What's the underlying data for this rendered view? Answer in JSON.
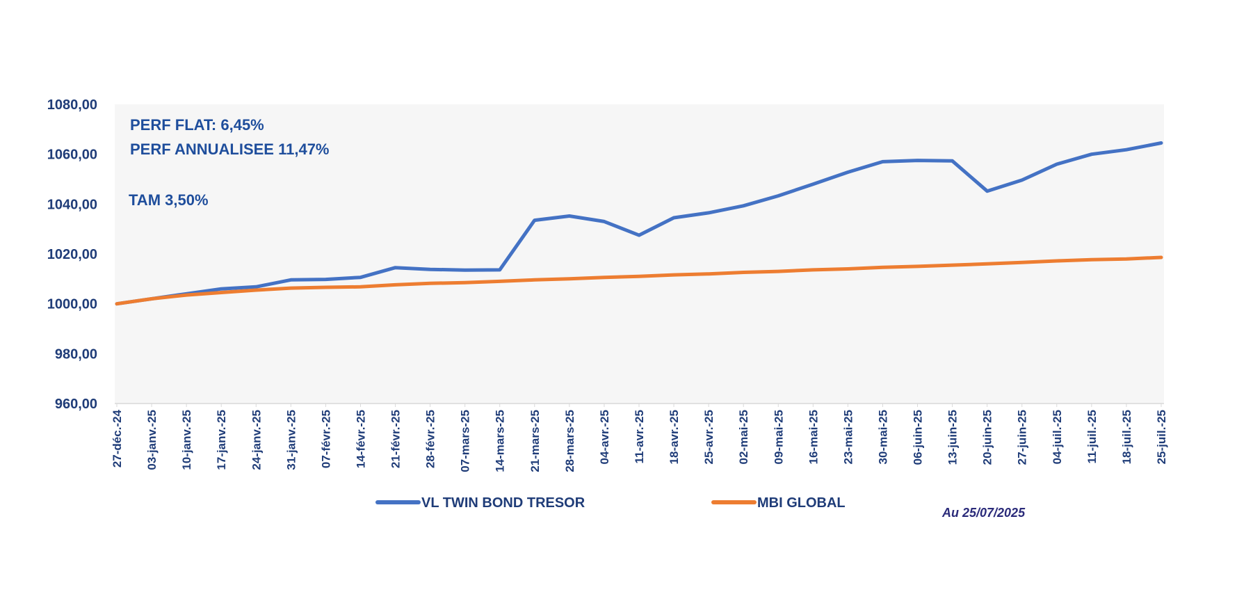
{
  "chart_data": {
    "type": "line",
    "title": "",
    "xlabel": "",
    "ylabel": "",
    "ylim": [
      960,
      1080
    ],
    "yticks": [
      "960,00",
      "980,00",
      "1000,00",
      "1020,00",
      "1040,00",
      "1060,00",
      "1080,00"
    ],
    "ytick_values": [
      960,
      980,
      1000,
      1020,
      1040,
      1060,
      1080
    ],
    "grid": false,
    "legend_position": "bottom",
    "categories": [
      "27-déc.-24",
      "03-janv.-25",
      "10-janv.-25",
      "17-janv.-25",
      "24-janv.-25",
      "31-janv.-25",
      "07-févr.-25",
      "14-févr.-25",
      "21-févr.-25",
      "28-févr.-25",
      "07-mars-25",
      "14-mars-25",
      "21-mars-25",
      "28-mars-25",
      "04-avr.-25",
      "11-avr.-25",
      "18-avr.-25",
      "25-avr.-25",
      "02-mai-25",
      "09-mai-25",
      "16-mai-25",
      "23-mai-25",
      "30-mai-25",
      "06-juin-25",
      "13-juin-25",
      "20-juin-25",
      "27-juin-25",
      "04-juil.-25",
      "11-juil.-25",
      "18-juil.-25",
      "25-juil.-25"
    ],
    "series": [
      {
        "name": "VL TWIN BOND TRESOR",
        "color": "#4472c4",
        "values": [
          1000.0,
          1002.0,
          1004.0,
          1006.0,
          1006.8,
          1009.6,
          1009.8,
          1010.6,
          1014.5,
          1013.8,
          1013.5,
          1013.6,
          1033.5,
          1035.2,
          1033.0,
          1027.5,
          1034.5,
          1036.5,
          1039.3,
          1043.3,
          1048.0,
          1052.8,
          1057.0,
          1057.5,
          1057.3,
          1045.2,
          1049.6,
          1056.0,
          1060.0,
          1061.8,
          1064.5
        ]
      },
      {
        "name": "MBI GLOBAL",
        "color": "#ed7d31",
        "values": [
          1000.0,
          1002.0,
          1003.5,
          1004.5,
          1005.5,
          1006.3,
          1006.6,
          1006.8,
          1007.6,
          1008.2,
          1008.5,
          1009.0,
          1009.6,
          1010.0,
          1010.6,
          1011.0,
          1011.6,
          1012.0,
          1012.6,
          1013.0,
          1013.6,
          1014.0,
          1014.6,
          1015.0,
          1015.5,
          1016.0,
          1016.6,
          1017.2,
          1017.7,
          1018.0,
          1018.6
        ]
      }
    ],
    "annotations": {
      "perf_flat": "PERF FLAT: 6,45%",
      "perf_annualisee": "PERF ANNUALISEE 11,47%",
      "tam": "TAM 3,50%",
      "as_of": "Au 25/07/2025"
    }
  }
}
